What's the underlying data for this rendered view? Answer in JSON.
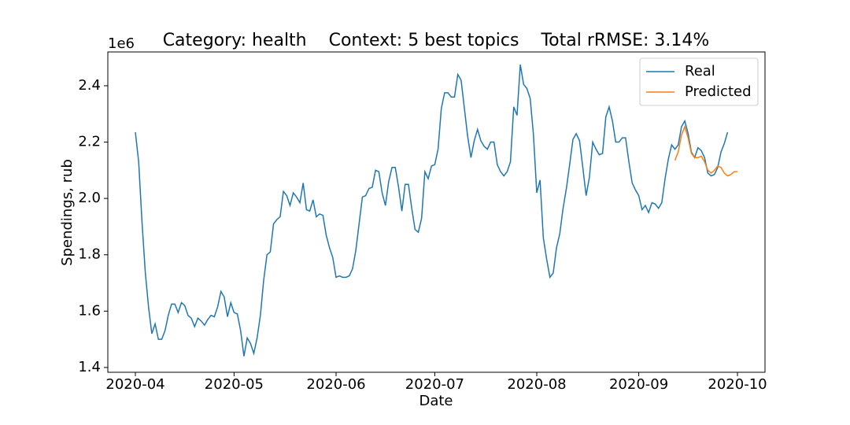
{
  "chart_data": {
    "type": "line",
    "title": "Category: health    Context: 5 best topics    Total rRMSE: 3.14%",
    "x_label": "Date",
    "y_label": "Spendings, rub",
    "y_offset_label": "1e6",
    "categories": [
      "2020-04",
      null,
      null,
      null,
      null,
      null,
      null,
      null,
      null,
      null,
      null,
      null,
      null,
      null,
      null,
      null,
      null,
      null,
      null,
      null,
      null,
      null,
      null,
      null,
      null,
      null,
      null,
      null,
      null,
      null,
      "2020-05",
      null,
      null,
      null,
      null,
      null,
      null,
      null,
      null,
      null,
      null,
      null,
      null,
      null,
      null,
      null,
      null,
      null,
      null,
      null,
      null,
      null,
      null,
      null,
      null,
      null,
      null,
      null,
      null,
      null,
      null,
      "2020-06",
      null,
      null,
      null,
      null,
      null,
      null,
      null,
      null,
      null,
      null,
      null,
      null,
      null,
      null,
      null,
      null,
      null,
      null,
      null,
      null,
      null,
      null,
      null,
      null,
      null,
      null,
      null,
      null,
      null,
      "2020-07",
      null,
      null,
      null,
      null,
      null,
      null,
      null,
      null,
      null,
      null,
      null,
      null,
      null,
      null,
      null,
      null,
      null,
      null,
      null,
      null,
      null,
      null,
      null,
      null,
      null,
      null,
      null,
      null,
      null,
      null,
      "2020-08",
      null,
      null,
      null,
      null,
      null,
      null,
      null,
      null,
      null,
      null,
      null,
      null,
      null,
      null,
      null,
      null,
      null,
      null,
      null,
      null,
      null,
      null,
      null,
      null,
      null,
      null,
      null,
      null,
      null,
      null,
      "2020-09",
      null,
      null,
      null,
      null,
      null,
      null,
      null,
      null,
      null,
      null,
      null,
      null,
      null,
      null,
      null,
      null,
      null,
      null,
      null,
      null,
      null,
      null,
      null,
      null,
      null,
      null,
      null,
      null,
      null,
      "2020-10"
    ],
    "series": [
      {
        "name": "Real",
        "color": "#1f77b4",
        "values": [
          2.235,
          2.13,
          1.92,
          1.74,
          1.615,
          1.52,
          1.555,
          1.5,
          1.5,
          1.53,
          1.585,
          1.625,
          1.625,
          1.595,
          1.63,
          1.62,
          1.585,
          1.575,
          1.545,
          1.575,
          1.565,
          1.55,
          1.57,
          1.585,
          1.58,
          1.615,
          1.67,
          1.65,
          1.58,
          1.63,
          1.595,
          1.59,
          1.53,
          1.44,
          1.505,
          1.485,
          1.45,
          1.505,
          1.585,
          1.71,
          1.8,
          1.81,
          1.91,
          1.925,
          1.935,
          2.025,
          2.01,
          1.975,
          2.02,
          2.005,
          1.985,
          2.055,
          1.96,
          1.955,
          1.995,
          1.935,
          1.945,
          1.94,
          1.87,
          1.825,
          1.79,
          1.72,
          1.725,
          1.72,
          1.72,
          1.725,
          1.75,
          1.815,
          1.91,
          2.005,
          2.01,
          2.035,
          2.04,
          2.1,
          2.095,
          2.02,
          1.975,
          2.06,
          2.11,
          2.11,
          2.04,
          1.955,
          2.05,
          2.05,
          1.965,
          1.89,
          1.88,
          1.93,
          2.095,
          2.07,
          2.115,
          2.12,
          2.175,
          2.32,
          2.375,
          2.375,
          2.36,
          2.36,
          2.44,
          2.42,
          2.32,
          2.22,
          2.145,
          2.205,
          2.245,
          2.205,
          2.185,
          2.175,
          2.2,
          2.2,
          2.12,
          2.095,
          2.08,
          2.095,
          2.13,
          2.325,
          2.295,
          2.475,
          2.405,
          2.39,
          2.355,
          2.225,
          2.02,
          2.065,
          1.86,
          1.785,
          1.72,
          1.735,
          1.825,
          1.875,
          1.965,
          2.035,
          2.12,
          2.21,
          2.23,
          2.205,
          2.11,
          2.01,
          2.075,
          2.2,
          2.175,
          2.155,
          2.16,
          2.29,
          2.325,
          2.275,
          2.2,
          2.2,
          2.215,
          2.215,
          2.13,
          2.055,
          2.03,
          2.01,
          1.96,
          1.975,
          1.95,
          1.985,
          1.98,
          1.965,
          1.985,
          2.07,
          2.14,
          2.19,
          2.175,
          2.19,
          2.255,
          2.275,
          2.23,
          2.165,
          2.145,
          2.18,
          2.17,
          2.145,
          2.09,
          2.08,
          2.085,
          2.11,
          2.165,
          2.195,
          2.235,
          null,
          null,
          null
        ]
      },
      {
        "name": "Predicted",
        "color": "#ff7f0e",
        "values": [
          null,
          null,
          null,
          null,
          null,
          null,
          null,
          null,
          null,
          null,
          null,
          null,
          null,
          null,
          null,
          null,
          null,
          null,
          null,
          null,
          null,
          null,
          null,
          null,
          null,
          null,
          null,
          null,
          null,
          null,
          null,
          null,
          null,
          null,
          null,
          null,
          null,
          null,
          null,
          null,
          null,
          null,
          null,
          null,
          null,
          null,
          null,
          null,
          null,
          null,
          null,
          null,
          null,
          null,
          null,
          null,
          null,
          null,
          null,
          null,
          null,
          null,
          null,
          null,
          null,
          null,
          null,
          null,
          null,
          null,
          null,
          null,
          null,
          null,
          null,
          null,
          null,
          null,
          null,
          null,
          null,
          null,
          null,
          null,
          null,
          null,
          null,
          null,
          null,
          null,
          null,
          null,
          null,
          null,
          null,
          null,
          null,
          null,
          null,
          null,
          null,
          null,
          null,
          null,
          null,
          null,
          null,
          null,
          null,
          null,
          null,
          null,
          null,
          null,
          null,
          null,
          null,
          null,
          null,
          null,
          null,
          null,
          null,
          null,
          null,
          null,
          null,
          null,
          null,
          null,
          null,
          null,
          null,
          null,
          null,
          null,
          null,
          null,
          null,
          null,
          null,
          null,
          null,
          null,
          null,
          null,
          null,
          null,
          null,
          null,
          null,
          null,
          null,
          null,
          null,
          null,
          null,
          null,
          null,
          null,
          null,
          null,
          null,
          null,
          2.135,
          2.165,
          2.225,
          2.255,
          2.215,
          2.16,
          2.145,
          2.145,
          2.15,
          2.13,
          2.1,
          2.09,
          2.1,
          2.115,
          2.11,
          2.09,
          2.08,
          2.085,
          2.095,
          2.095
        ]
      }
    ],
    "ylim": [
      1.383,
      2.52
    ],
    "yticks": [
      1.4,
      1.6,
      1.8,
      {
        "value": 2,
        "label": "2.0"
      },
      2.2,
      2.4
    ],
    "legend": "upper right"
  }
}
